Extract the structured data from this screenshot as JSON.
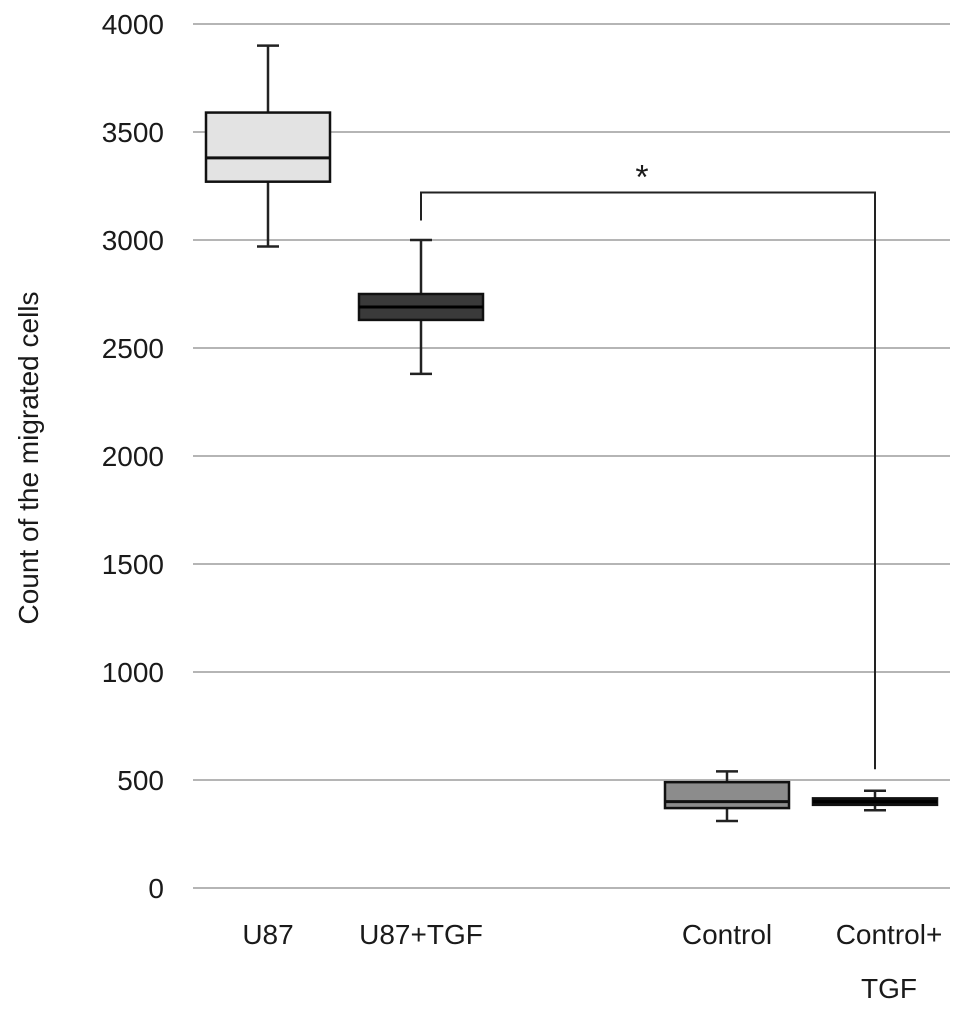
{
  "chart_data": {
    "type": "box",
    "title": "",
    "xlabel": "",
    "ylabel": "Count of the migrated cells",
    "ylim": [
      0,
      4000
    ],
    "yticks": [
      "0",
      "500",
      "1000",
      "1500",
      "2000",
      "2500",
      "3000",
      "3500",
      "4000"
    ],
    "grid": true,
    "categories": [
      {
        "lines": [
          "U87"
        ]
      },
      {
        "lines": [
          "U87+TGF"
        ]
      },
      {
        "lines": [
          "Control"
        ]
      },
      {
        "lines": [
          "Control+",
          "TGF"
        ]
      }
    ],
    "boxes": [
      {
        "min": 2970,
        "q1": 3270,
        "median": 3380,
        "q3": 3590,
        "max": 3900,
        "color": "#e3e3e3"
      },
      {
        "min": 2380,
        "q1": 2630,
        "median": 2690,
        "q3": 2750,
        "max": 3000,
        "color": "#3a3a3a"
      },
      {
        "min": 310,
        "q1": 370,
        "median": 400,
        "q3": 490,
        "max": 540,
        "color": "#8c8c8c"
      },
      {
        "min": 360,
        "q1": 385,
        "median": 400,
        "q3": 415,
        "max": 450,
        "color": "#111111"
      }
    ],
    "annotations": [
      {
        "text": "*",
        "from": 1,
        "to": 3,
        "y": 3220,
        "to_end_y": 550
      }
    ]
  }
}
